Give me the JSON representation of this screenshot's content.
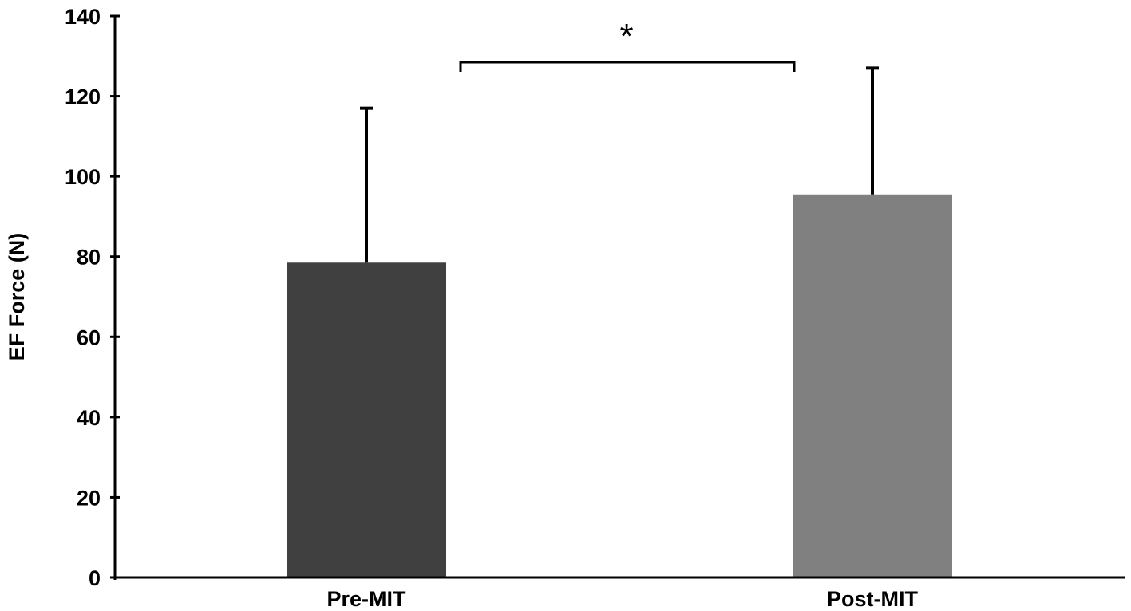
{
  "chart_data": {
    "type": "bar",
    "categories": [
      "Pre-MIT",
      "Post-MIT"
    ],
    "values": [
      78.5,
      95.5
    ],
    "error_upper": [
      38.5,
      31.5
    ],
    "colors": [
      "#404040",
      "#808080"
    ],
    "xlabel": "",
    "ylabel": "EF Force (N)",
    "ylim": [
      0,
      140
    ],
    "yticks": [
      0,
      20,
      40,
      60,
      80,
      100,
      120,
      140
    ],
    "grid": false,
    "legend": "none",
    "annotation": {
      "text": "*",
      "from": "Pre-MIT",
      "to": "Post-MIT"
    }
  }
}
